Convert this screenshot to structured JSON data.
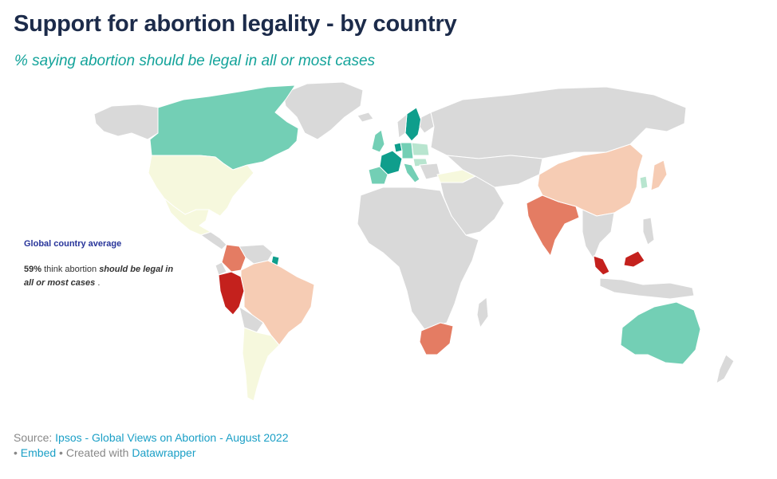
{
  "title": "Support for abortion legality - by country",
  "subtitle": "% saying abortion should be legal in all or most cases",
  "annotation": {
    "heading": "Global country average",
    "percent": "59%",
    "text_mid": " think abortion ",
    "emphasis": "should be legal in all or most cases",
    "text_end": " ."
  },
  "footer": {
    "source_prefix": "Source: ",
    "source_link": "Ipsos - Global Views on Abortion - August 2022",
    "bullet1": "• ",
    "embed_link": "Embed",
    "created_text": " • Created with ",
    "datawrapper_link": "Datawrapper"
  },
  "colors": {
    "no_data": "#d9d9d9",
    "very_high": "#0f9e8c",
    "high": "#73cfb5",
    "mid_high": "#b8e5cf",
    "neutral": "#f6f8dd",
    "low": "#f6ccb4",
    "lower": "#e47c63",
    "lowest": "#c4211d"
  },
  "shaded_regions": [
    {
      "name": "Canada",
      "color": "high"
    },
    {
      "name": "United States",
      "color": "neutral"
    },
    {
      "name": "Mexico",
      "color": "neutral"
    },
    {
      "name": "Colombia",
      "color": "lower"
    },
    {
      "name": "Peru",
      "color": "lowest"
    },
    {
      "name": "Brazil",
      "color": "low"
    },
    {
      "name": "Chile",
      "color": "neutral"
    },
    {
      "name": "Argentina",
      "color": "neutral"
    },
    {
      "name": "French Guiana",
      "color": "very_high"
    },
    {
      "name": "Sweden",
      "color": "very_high"
    },
    {
      "name": "United Kingdom",
      "color": "high"
    },
    {
      "name": "France",
      "color": "very_high"
    },
    {
      "name": "Spain",
      "color": "high"
    },
    {
      "name": "Netherlands",
      "color": "very_high"
    },
    {
      "name": "Belgium",
      "color": "high"
    },
    {
      "name": "Germany",
      "color": "high"
    },
    {
      "name": "Poland",
      "color": "mid_high"
    },
    {
      "name": "Hungary",
      "color": "mid_high"
    },
    {
      "name": "Italy",
      "color": "high"
    },
    {
      "name": "Turkey",
      "color": "neutral"
    },
    {
      "name": "India",
      "color": "lower"
    },
    {
      "name": "China",
      "color": "low"
    },
    {
      "name": "Japan",
      "color": "low"
    },
    {
      "name": "South Korea",
      "color": "mid_high"
    },
    {
      "name": "Malaysia",
      "color": "lowest"
    },
    {
      "name": "South Africa",
      "color": "lower"
    },
    {
      "name": "Australia",
      "color": "high"
    }
  ]
}
